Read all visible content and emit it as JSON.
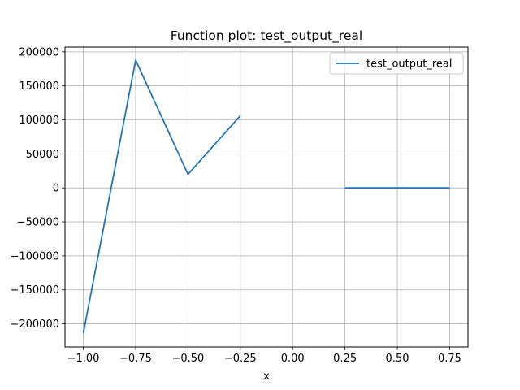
{
  "chart_data": {
    "type": "line",
    "title": "Function plot: test_output_real",
    "xlabel": "x",
    "ylabel": "",
    "xlim": [
      -1.0875,
      0.8375
    ],
    "ylim": [
      -234000,
      207000
    ],
    "xticks": [
      -1.0,
      -0.75,
      -0.5,
      -0.25,
      0.0,
      0.25,
      0.5,
      0.75
    ],
    "xtick_labels": [
      "−1.00",
      "−0.75",
      "−0.50",
      "−0.25",
      "0.00",
      "0.25",
      "0.50",
      "0.75"
    ],
    "yticks": [
      -200000,
      -150000,
      -100000,
      -50000,
      0,
      50000,
      100000,
      150000,
      200000
    ],
    "ytick_labels": [
      "−200000",
      "−150000",
      "−100000",
      "−50000",
      "0",
      "50000",
      "100000",
      "150000",
      "200000"
    ],
    "grid": true,
    "legend_position": "top-right",
    "series": [
      {
        "name": "test_output_real",
        "color": "#1f77b4",
        "segments": [
          [
            [
              -1.0,
              -214000
            ],
            [
              -0.75,
              188000
            ],
            [
              -0.5,
              20000
            ],
            [
              -0.25,
              106000
            ]
          ],
          [
            [
              0.25,
              0
            ],
            [
              0.5,
              0
            ],
            [
              0.75,
              0
            ]
          ]
        ]
      }
    ]
  }
}
